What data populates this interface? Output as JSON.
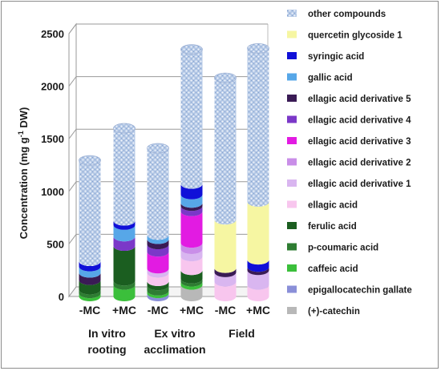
{
  "chart_data": {
    "type": "bar",
    "stacked": true,
    "ylabel_prefix": "Concentration (mg g",
    "ylabel_sup": "-1",
    "ylabel_suffix": " DW)",
    "ylim": [
      0,
      2500
    ],
    "yticks": [
      0,
      500,
      1000,
      1500,
      2000,
      2500
    ],
    "grid": true,
    "legend_position": "right",
    "categories": [
      "-MC",
      "+MC",
      "-MC",
      "+MC",
      "-MC",
      "+MC"
    ],
    "groups": [
      {
        "label_lines": [
          "In vitro",
          "rooting"
        ],
        "members": [
          0,
          1
        ]
      },
      {
        "label_lines": [
          "Ex vitro",
          "acclimation"
        ],
        "members": [
          2,
          3
        ]
      },
      {
        "label_lines": [
          "Field"
        ],
        "members": [
          4,
          5
        ]
      }
    ],
    "series": [
      {
        "name": "(+)-catechin",
        "color": "#b8b8b8",
        "values": [
          0,
          0,
          0,
          110,
          0,
          0
        ]
      },
      {
        "name": "epigallocatechin gallate",
        "color": "#8a8fd8",
        "values": [
          0,
          0,
          30,
          0,
          0,
          0
        ]
      },
      {
        "name": "caffeic acid",
        "color": "#3bbf3b",
        "values": [
          30,
          110,
          25,
          30,
          0,
          0
        ]
      },
      {
        "name": "p-coumaric acid",
        "color": "#2e7d32",
        "values": [
          35,
          40,
          50,
          30,
          0,
          0
        ]
      },
      {
        "name": "ferulic acid",
        "color": "#1b5e20",
        "values": [
          90,
          330,
          40,
          80,
          0,
          0
        ]
      },
      {
        "name": "ellagic acid",
        "color": "#f8c6ee",
        "values": [
          0,
          0,
          80,
          130,
          140,
          110
        ]
      },
      {
        "name": "ellagic acid derivative 1",
        "color": "#d9b6f0",
        "values": [
          0,
          0,
          40,
          70,
          90,
          140
        ]
      },
      {
        "name": "ellagic acid derivative 2",
        "color": "#c98ee8",
        "values": [
          0,
          0,
          0,
          60,
          0,
          0
        ]
      },
      {
        "name": "ellagic acid derivative 3",
        "color": "#e21be2",
        "values": [
          0,
          0,
          160,
          300,
          0,
          0
        ]
      },
      {
        "name": "ellagic acid derivative 4",
        "color": "#7b38c8",
        "values": [
          0,
          90,
          70,
          50,
          0,
          0
        ]
      },
      {
        "name": "ellagic acid derivative 5",
        "color": "#3a1b55",
        "values": [
          70,
          0,
          50,
          30,
          40,
          30
        ]
      },
      {
        "name": "gallic acid",
        "color": "#57a7e8",
        "values": [
          60,
          110,
          40,
          80,
          0,
          0
        ]
      },
      {
        "name": "syringic acid",
        "color": "#1010d8",
        "values": [
          50,
          40,
          0,
          100,
          0,
          70
        ]
      },
      {
        "name": "quercetin glycoside 1",
        "color": "#f6f6a2",
        "values": [
          0,
          0,
          0,
          0,
          460,
          550
        ]
      },
      {
        "name": "other compounds",
        "color": "#b4c8e6",
        "values": [
          960,
          880,
          825,
          1280,
          1350,
          1460
        ]
      }
    ]
  }
}
